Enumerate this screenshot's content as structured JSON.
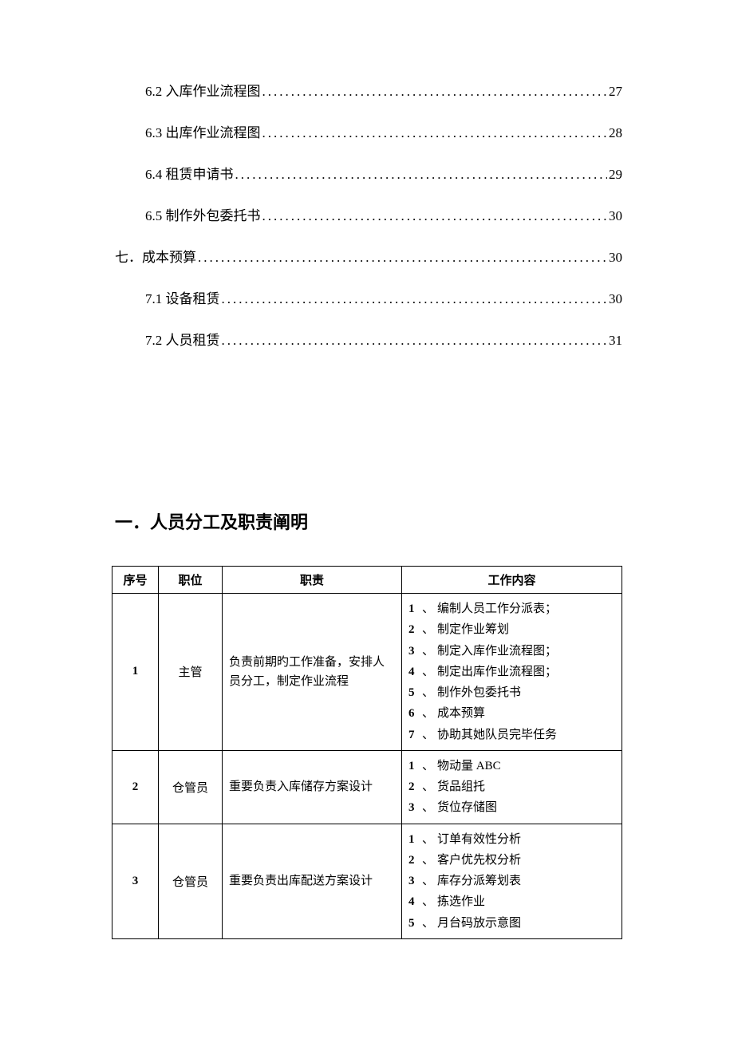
{
  "toc": {
    "entries": [
      {
        "level": 2,
        "label": "6.2 入库作业流程图",
        "page": "27"
      },
      {
        "level": 2,
        "label": "6.3 出库作业流程图",
        "page": "28"
      },
      {
        "level": 2,
        "label": "6.4 租赁申请书",
        "page": "29"
      },
      {
        "level": 2,
        "label": "6.5 制作外包委托书",
        "page": "30"
      },
      {
        "level": 1,
        "label": "七．成本预算",
        "page": "30"
      },
      {
        "level": 2,
        "label": "7.1 设备租赁",
        "page": "30"
      },
      {
        "level": 2,
        "label": "7.2 人员租赁",
        "page": "31"
      }
    ]
  },
  "section_heading": "一．人员分工及职责阐明",
  "table": {
    "headers": {
      "index": "序号",
      "position": "职位",
      "duty": "职责",
      "content": "工作内容"
    },
    "rows": [
      {
        "index": "1",
        "position": "主管",
        "duty": "负责前期旳工作准备，安排人员分工，制定作业流程",
        "content_items": [
          "编制人员工作分派表；",
          "制定作业筹划",
          "制定入库作业流程图；",
          "制定出库作业流程图；",
          "制作外包委托书",
          "成本预算",
          "协助其她队员完毕任务"
        ]
      },
      {
        "index": "2",
        "position": "仓管员",
        "duty": "重要负责入库储存方案设计",
        "content_items": [
          "物动量 ABC",
          "货品组托",
          "货位存储图"
        ]
      },
      {
        "index": "3",
        "position": "仓管员",
        "duty": "重要负责出库配送方案设计",
        "content_items": [
          "订单有效性分析",
          "客户优先权分析",
          "库存分派筹划表",
          "拣选作业",
          "月台码放示意图"
        ]
      }
    ]
  }
}
